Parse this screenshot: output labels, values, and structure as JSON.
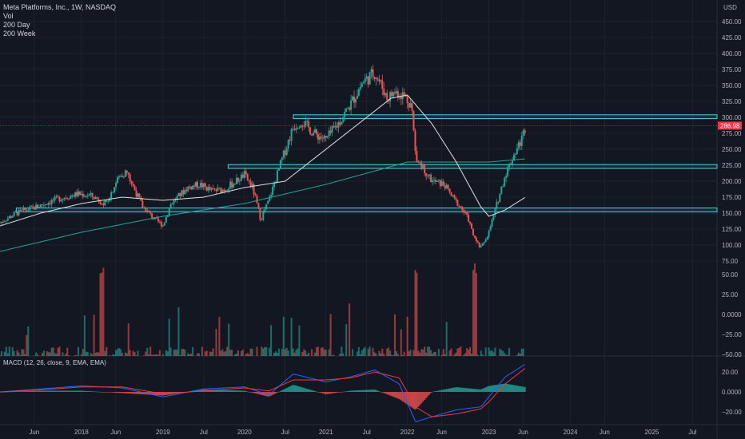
{
  "legend": {
    "title": "Meta Platforms, Inc., 1W, NASDAQ",
    "vol": "Vol",
    "ma1": "200 Day",
    "ma2": "200 Week"
  },
  "macd_label": "MACD (12, 26, close, 9, EMA, EMA)",
  "currency": "USD",
  "last_price": "286.98",
  "colors": {
    "up": "#26a69a",
    "down": "#ef5350",
    "zone": "#4dd0e1",
    "ma200day": "#e0e0e0",
    "ma200week": "#26a69a",
    "macd": "#2962ff",
    "signal": "#f23645",
    "last": "#f23645"
  },
  "chart_data": {
    "type": "line",
    "title": "Meta Platforms, Inc., 1W, NASDAQ",
    "price_axis": {
      "ticks": [
        "450.00",
        "425.00",
        "400.00",
        "375.00",
        "350.00",
        "325.00",
        "300.00",
        "275.00",
        "250.00",
        "225.00",
        "200.00",
        "175.00",
        "150.00",
        "125.00",
        "100.00",
        "75.00"
      ]
    },
    "volume_axis": {
      "ticks": [
        "50.00",
        "25.00",
        "0.0000",
        "−25.00",
        "−50.00"
      ]
    },
    "macd_axis": {
      "ticks": [
        "20.00",
        "0.0000",
        "−20.00"
      ]
    },
    "time_labels": [
      "Jun",
      "2018",
      "Jun",
      "2019",
      "Jul",
      "2020",
      "Jul",
      "2021",
      "Jul",
      "2022",
      "Jun",
      "2023",
      "Jun",
      "2024",
      "Jun",
      "2025",
      "Jul"
    ],
    "time_label_years": [
      2017.42,
      2018.0,
      2018.42,
      2019.0,
      2019.5,
      2020.0,
      2020.5,
      2021.0,
      2021.5,
      2022.0,
      2022.42,
      2023.0,
      2023.42,
      2024.0,
      2024.42,
      2025.0,
      2025.5
    ],
    "horizontal_zones": [
      {
        "from": 298,
        "to": 304,
        "start": 2020.6
      },
      {
        "from": 220,
        "to": 226,
        "start": 2019.8
      },
      {
        "from": 152,
        "to": 158,
        "start": 2017.2
      }
    ],
    "price_path": {
      "x": [
        2017.0,
        2017.2,
        2017.45,
        2017.7,
        2017.95,
        2018.1,
        2018.2,
        2018.3,
        2018.45,
        2018.55,
        2018.75,
        2018.9,
        2019.0,
        2019.1,
        2019.3,
        2019.45,
        2019.6,
        2019.75,
        2019.9,
        2020.0,
        2020.1,
        2020.2,
        2020.3,
        2020.45,
        2020.6,
        2020.7,
        2020.85,
        2021.0,
        2021.15,
        2021.3,
        2021.45,
        2021.6,
        2021.7,
        2021.75,
        2021.85,
        2021.95,
        2022.05,
        2022.1,
        2022.2,
        2022.3,
        2022.45,
        2022.55,
        2022.65,
        2022.75,
        2022.82,
        2022.9,
        2023.0,
        2023.1,
        2023.2,
        2023.3,
        2023.4,
        2023.45
      ],
      "y": [
        135,
        150,
        160,
        172,
        180,
        178,
        172,
        165,
        205,
        215,
        160,
        140,
        131,
        165,
        190,
        195,
        185,
        187,
        200,
        210,
        190,
        140,
        170,
        230,
        285,
        295,
        275,
        265,
        290,
        320,
        355,
        370,
        345,
        330,
        340,
        335,
        320,
        240,
        220,
        200,
        195,
        175,
        160,
        140,
        110,
        95,
        120,
        165,
        210,
        240,
        265,
        287
      ]
    },
    "ma200day": {
      "x": [
        2017.0,
        2017.5,
        2018.0,
        2018.5,
        2019.0,
        2019.5,
        2020.0,
        2020.5,
        2021.0,
        2021.5,
        2021.8,
        2022.0,
        2022.3,
        2022.6,
        2022.9,
        2023.0,
        2023.2,
        2023.45
      ],
      "y": [
        130,
        150,
        165,
        175,
        170,
        175,
        190,
        200,
        250,
        300,
        330,
        335,
        290,
        230,
        160,
        145,
        155,
        175
      ]
    },
    "ma200week": {
      "x": [
        2017.0,
        2018.0,
        2019.0,
        2020.0,
        2021.0,
        2022.0,
        2022.5,
        2023.0,
        2023.45
      ],
      "y": [
        90,
        120,
        145,
        165,
        195,
        230,
        230,
        230,
        235
      ]
    },
    "macd": {
      "x": [
        2017.0,
        2017.5,
        2018.0,
        2018.5,
        2019.0,
        2019.5,
        2020.0,
        2020.3,
        2020.6,
        2021.0,
        2021.3,
        2021.6,
        2021.9,
        2022.1,
        2022.3,
        2022.6,
        2022.9,
        2023.0,
        2023.2,
        2023.45
      ],
      "y": [
        0,
        3,
        6,
        4,
        -5,
        3,
        5,
        -3,
        18,
        10,
        15,
        22,
        8,
        -30,
        -25,
        -18,
        -15,
        -5,
        15,
        28
      ]
    },
    "signal": {
      "x": [
        2017.0,
        2017.5,
        2018.0,
        2018.5,
        2019.0,
        2019.5,
        2020.0,
        2020.3,
        2020.6,
        2021.0,
        2021.3,
        2021.6,
        2021.9,
        2022.1,
        2022.3,
        2022.6,
        2022.9,
        2023.0,
        2023.2,
        2023.45
      ],
      "y": [
        0,
        2,
        5,
        5,
        -2,
        1,
        4,
        1,
        12,
        12,
        14,
        20,
        14,
        -15,
        -25,
        -22,
        -17,
        -10,
        8,
        24
      ]
    }
  }
}
